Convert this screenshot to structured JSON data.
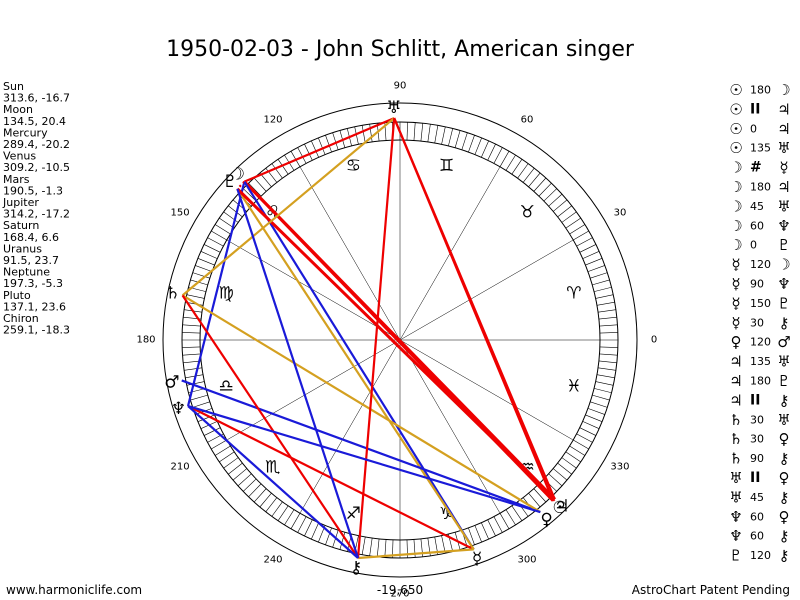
{
  "title": "1950-02-03 - John Schlitt, American singer",
  "planets": [
    {
      "name": "Sun",
      "glyph": "☉",
      "position": "313.6, -16.7"
    },
    {
      "name": "Moon",
      "glyph": "☽",
      "position": "134.5, 20.4"
    },
    {
      "name": "Mercury",
      "glyph": "☿",
      "position": "289.4, -20.2"
    },
    {
      "name": "Venus",
      "glyph": "♀",
      "position": "309.2, -10.5"
    },
    {
      "name": "Mars",
      "glyph": "♂",
      "position": "190.5, -1.3"
    },
    {
      "name": "Jupiter",
      "glyph": "♃",
      "position": "314.2, -17.2"
    },
    {
      "name": "Saturn",
      "glyph": "♄",
      "position": "168.4, 6.6"
    },
    {
      "name": "Uranus",
      "glyph": "♅",
      "position": "91.5, 23.7"
    },
    {
      "name": "Neptune",
      "glyph": "♆",
      "position": "197.3, -5.3"
    },
    {
      "name": "Pluto",
      "glyph": "♇",
      "position": "137.1, 23.6"
    },
    {
      "name": "Chiron",
      "glyph": "⚷",
      "position": "259.1, -18.3"
    }
  ],
  "signs": [
    "♈",
    "♉",
    "♊",
    "♋",
    "♌",
    "♍",
    "♎",
    "♏",
    "♐",
    "♑",
    "♒",
    "♓"
  ],
  "degree_labels": [
    0,
    30,
    60,
    90,
    120,
    150,
    180,
    210,
    240,
    270,
    300,
    330
  ],
  "aspects": [
    {
      "from": "☉",
      "kind": 180,
      "to": "☽"
    },
    {
      "from": "☉",
      "kind": "II",
      "to": "♃"
    },
    {
      "from": "☉",
      "kind": 0,
      "to": "♃"
    },
    {
      "from": "☉",
      "kind": 135,
      "to": "♅"
    },
    {
      "from": "☽",
      "kind": "#",
      "to": "☿"
    },
    {
      "from": "☽",
      "kind": 180,
      "to": "♃"
    },
    {
      "from": "☽",
      "kind": 45,
      "to": "♅"
    },
    {
      "from": "☽",
      "kind": 60,
      "to": "♆"
    },
    {
      "from": "☽",
      "kind": 0,
      "to": "♇"
    },
    {
      "from": "☿",
      "kind": 120,
      "to": "☽"
    },
    {
      "from": "☿",
      "kind": 90,
      "to": "♆"
    },
    {
      "from": "☿",
      "kind": 150,
      "to": "♇"
    },
    {
      "from": "☿",
      "kind": 30,
      "to": "⚷"
    },
    {
      "from": "♀",
      "kind": 120,
      "to": "♂"
    },
    {
      "from": "♃",
      "kind": 135,
      "to": "♅"
    },
    {
      "from": "♃",
      "kind": 180,
      "to": "♇"
    },
    {
      "from": "♃",
      "kind": "II",
      "to": "⚷"
    },
    {
      "from": "♄",
      "kind": 30,
      "to": "♅"
    },
    {
      "from": "♄",
      "kind": 30,
      "to": "♀"
    },
    {
      "from": "♄",
      "kind": 90,
      "to": "⚷"
    },
    {
      "from": "♅",
      "kind": "II",
      "to": "♀"
    },
    {
      "from": "♅",
      "kind": 45,
      "to": "⚷"
    },
    {
      "from": "♆",
      "kind": 60,
      "to": "♀"
    },
    {
      "from": "♆",
      "kind": 60,
      "to": "⚷"
    },
    {
      "from": "♇",
      "kind": 120,
      "to": "⚷"
    }
  ],
  "bottom_value": "-19,650",
  "footer": {
    "left": "www.harmoniclife.com",
    "right": "AstroChart Patent Pending"
  }
}
